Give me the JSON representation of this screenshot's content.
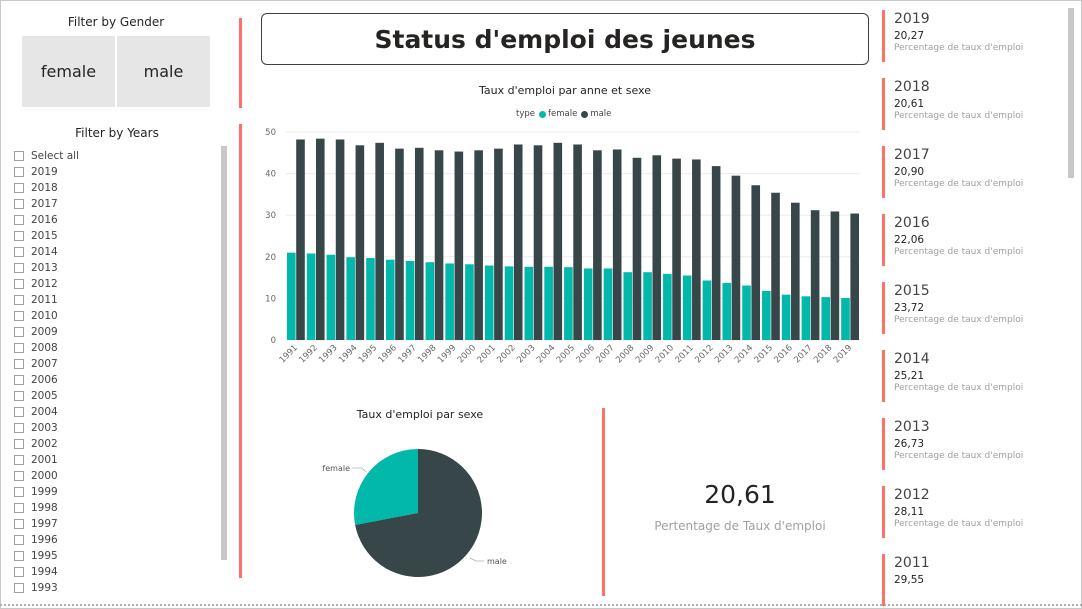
{
  "gender_filter": {
    "title": "Filter by Gender",
    "options": [
      "female",
      "male"
    ]
  },
  "years_filter": {
    "title": "Filter by Years",
    "items": [
      "Select all",
      "2019",
      "2018",
      "2017",
      "2016",
      "2015",
      "2014",
      "2013",
      "2012",
      "2011",
      "2010",
      "2009",
      "2008",
      "2007",
      "2006",
      "2005",
      "2004",
      "2003",
      "2002",
      "2001",
      "2000",
      "1999",
      "1998",
      "1997",
      "1996",
      "1995",
      "1994",
      "1993"
    ]
  },
  "header": {
    "title": "Status d'emploi des jeunes"
  },
  "bar_chart": {
    "title": "Taux d'emploi par anne et sexe",
    "legend_title": "type",
    "legend": [
      {
        "name": "female",
        "color": "#01b8aa"
      },
      {
        "name": "male",
        "color": "#374649"
      }
    ]
  },
  "pie_chart": {
    "title": "Taux d'emploi par sexe",
    "labels": [
      "female",
      "male"
    ]
  },
  "kpi": {
    "value": "20,61",
    "label": "Pertentage de Taux d'emploi"
  },
  "cards": [
    {
      "year": "2019",
      "value": "20,27",
      "label": "Percentage de taux d'emploi"
    },
    {
      "year": "2018",
      "value": "20,61",
      "label": "Percentage de taux d'emploi"
    },
    {
      "year": "2017",
      "value": "20,90",
      "label": "Percentage de taux d'emploi"
    },
    {
      "year": "2016",
      "value": "22,06",
      "label": "Percentage de taux d'emploi"
    },
    {
      "year": "2015",
      "value": "23,72",
      "label": "Percentage de taux d'emploi"
    },
    {
      "year": "2014",
      "value": "25,21",
      "label": "Percentage de taux d'emploi"
    },
    {
      "year": "2013",
      "value": "26,73",
      "label": "Percentage de taux d'emploi"
    },
    {
      "year": "2012",
      "value": "28,11",
      "label": "Percentage de taux d'emploi"
    },
    {
      "year": "2011",
      "value": "29,55",
      "label": ""
    }
  ],
  "colors": {
    "female": "#01b8aa",
    "male": "#374649",
    "accent": "#ff7066"
  },
  "chart_data": [
    {
      "type": "bar",
      "title": "Taux d'emploi par anne et sexe",
      "categories": [
        "1991",
        "1992",
        "1993",
        "1994",
        "1995",
        "1996",
        "1997",
        "1998",
        "1999",
        "2000",
        "2001",
        "2002",
        "2003",
        "2004",
        "2005",
        "2006",
        "2007",
        "2008",
        "2009",
        "2010",
        "2011",
        "2012",
        "2013",
        "2014",
        "2015",
        "2016",
        "2017",
        "2018",
        "2019"
      ],
      "series": [
        {
          "name": "female",
          "values": [
            21.0,
            20.8,
            20.5,
            19.9,
            19.7,
            19.3,
            19.0,
            18.7,
            18.4,
            18.2,
            17.9,
            17.7,
            17.6,
            17.6,
            17.5,
            17.2,
            17.2,
            16.3,
            16.3,
            15.9,
            15.5,
            14.3,
            13.7,
            13.1,
            11.8,
            10.9,
            10.5,
            10.3,
            10.1
          ]
        },
        {
          "name": "male",
          "values": [
            48.2,
            48.4,
            48.2,
            46.8,
            47.4,
            46.0,
            46.2,
            45.6,
            45.3,
            45.6,
            46.0,
            47.0,
            46.8,
            47.4,
            47.0,
            45.6,
            45.8,
            43.8,
            44.4,
            43.6,
            43.4,
            41.8,
            39.5,
            37.2,
            35.4,
            33.0,
            31.2,
            30.9,
            30.4
          ]
        }
      ],
      "xlabel": "",
      "ylabel": "",
      "ylim": [
        0,
        50
      ],
      "yticks": [
        0,
        10,
        20,
        30,
        40,
        50
      ],
      "grid": true,
      "legend": "top"
    },
    {
      "type": "pie",
      "title": "Taux d'emploi par sexe",
      "labels": [
        "female",
        "male"
      ],
      "values": [
        28,
        72
      ],
      "colors": [
        "#01b8aa",
        "#374649"
      ]
    }
  ]
}
